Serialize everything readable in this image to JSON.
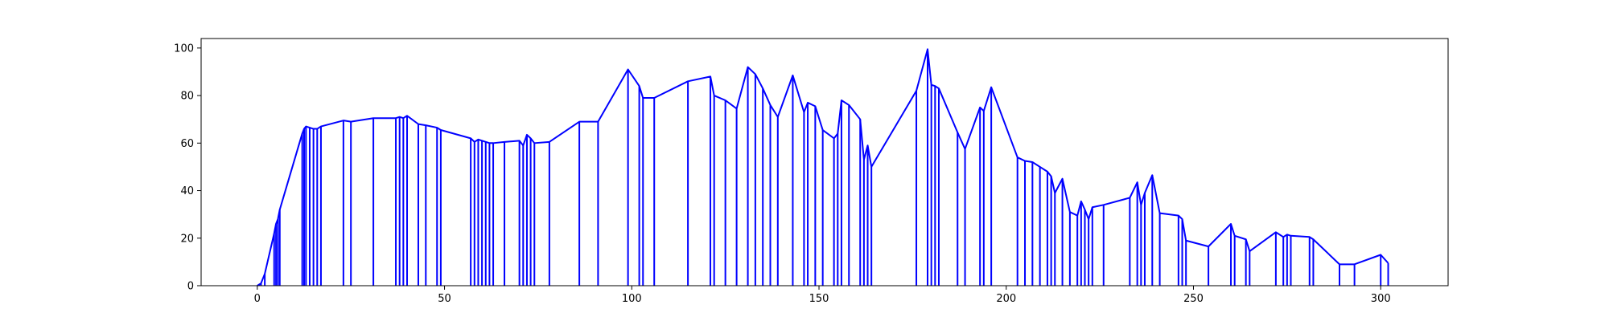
{
  "chart_data": {
    "type": "line",
    "title": "",
    "xlabel": "",
    "ylabel": "",
    "xlim": [
      -15,
      318
    ],
    "ylim": [
      0,
      104
    ],
    "xticks": [
      0,
      50,
      100,
      150,
      200,
      250,
      300
    ],
    "yticks": [
      0,
      20,
      40,
      60,
      80,
      100
    ],
    "xtick_labels": [
      "0",
      "50",
      "100",
      "150",
      "200",
      "250",
      "300"
    ],
    "ytick_labels": [
      "0",
      "20",
      "40",
      "60",
      "80",
      "100"
    ],
    "grid": false,
    "legend": "none",
    "series": [
      {
        "color": "#0000ff",
        "x": [
          0,
          0.5,
          1,
          2,
          4.5,
          5,
          5.5,
          6,
          12,
          12.5,
          13,
          14,
          15,
          16,
          17,
          23,
          25,
          31,
          37,
          38,
          39,
          40,
          43,
          45,
          48,
          49,
          57,
          58,
          59,
          60,
          61,
          62,
          63,
          66,
          70,
          71,
          72,
          73,
          74,
          78,
          86,
          91,
          99,
          102,
          103,
          106,
          115,
          121,
          122,
          125,
          128,
          131,
          133,
          135,
          137,
          139,
          143,
          146,
          147,
          149,
          151,
          154,
          155,
          156,
          158,
          161,
          162,
          163,
          164,
          176,
          179,
          180,
          181,
          182,
          187,
          189,
          193,
          194,
          196,
          203,
          205,
          207,
          209,
          211,
          212,
          213,
          215,
          217,
          219,
          220,
          221,
          222,
          223,
          226,
          233,
          235,
          236,
          237,
          239,
          241,
          246,
          247,
          248,
          254,
          260,
          261,
          264,
          265,
          272,
          274,
          275,
          276,
          281,
          282,
          289,
          293,
          300,
          302
        ],
        "y": [
          0,
          0.5,
          1,
          5,
          22,
          26,
          28,
          32,
          64,
          66,
          67,
          66.5,
          66,
          66,
          67,
          69.5,
          69,
          70.5,
          70.5,
          71,
          70.5,
          71.5,
          68,
          67.5,
          66.5,
          65.5,
          62,
          60.5,
          61.5,
          61,
          60.5,
          60,
          60,
          60.5,
          61,
          59,
          63.5,
          62,
          60,
          60.5,
          69,
          69,
          91,
          84,
          79,
          79,
          86,
          88,
          80,
          78,
          74.5,
          92,
          89,
          83,
          76,
          71,
          88.5,
          73,
          77,
          75.5,
          65.5,
          62,
          64,
          78,
          76,
          70,
          53,
          59,
          50,
          82,
          99.5,
          84.5,
          84,
          83,
          64.5,
          57.5,
          75,
          73.5,
          83.5,
          54,
          52.5,
          52,
          50,
          48,
          46,
          39,
          45,
          31,
          29.5,
          35.5,
          32,
          28,
          33,
          34,
          37,
          43.5,
          34,
          39,
          46.5,
          30.5,
          29.5,
          28,
          19,
          16.5,
          26,
          21,
          19.5,
          14.5,
          22.5,
          20.5,
          21.5,
          21,
          20.5,
          19.5,
          9,
          9,
          13,
          9.5
        ],
        "drop_lines": true
      }
    ]
  }
}
